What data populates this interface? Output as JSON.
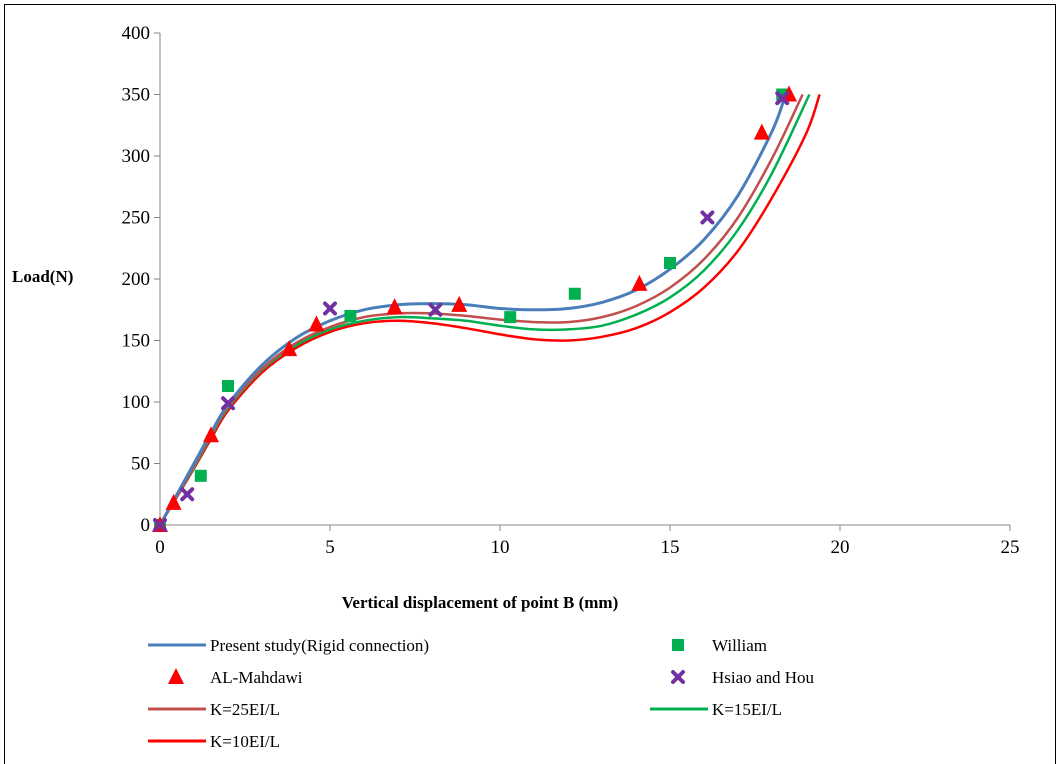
{
  "chart_data": {
    "type": "scatter",
    "title": "",
    "xlabel": "Vertical displacement of point B (mm)",
    "ylabel": "Load(N)",
    "xlim": [
      0,
      25
    ],
    "ylim": [
      0,
      400
    ],
    "x_ticks": [
      "0",
      "5",
      "10",
      "15",
      "20",
      "25"
    ],
    "y_ticks": [
      "0",
      "50",
      "100",
      "150",
      "200",
      "250",
      "300",
      "350",
      "400"
    ],
    "grid": false,
    "legend_position": "bottom",
    "series": [
      {
        "name": "Present study(Rigid connection)",
        "kind": "line",
        "color": "#4a7ebb",
        "points": [
          [
            0,
            0
          ],
          [
            0.5,
            25
          ],
          [
            1,
            50
          ],
          [
            1.5,
            75
          ],
          [
            2,
            98
          ],
          [
            3,
            130
          ],
          [
            4,
            152
          ],
          [
            5,
            166
          ],
          [
            6,
            175
          ],
          [
            7,
            179
          ],
          [
            8,
            180
          ],
          [
            9,
            179
          ],
          [
            10,
            176
          ],
          [
            11,
            175
          ],
          [
            12,
            176
          ],
          [
            13,
            181
          ],
          [
            14,
            191
          ],
          [
            15,
            208
          ],
          [
            16,
            232
          ],
          [
            17,
            268
          ],
          [
            18,
            320
          ],
          [
            18.4,
            350
          ]
        ]
      },
      {
        "name": "William",
        "kind": "marker",
        "marker": "square",
        "color": "#00b050",
        "points": [
          [
            0,
            0
          ],
          [
            1.2,
            40
          ],
          [
            2,
            113
          ],
          [
            5.6,
            170
          ],
          [
            10.3,
            169
          ],
          [
            12.2,
            188
          ],
          [
            15,
            213
          ],
          [
            18.3,
            350
          ]
        ]
      },
      {
        "name": "AL-Mahdawi",
        "kind": "marker",
        "marker": "triangle",
        "color": "#ff0000",
        "points": [
          [
            0,
            0
          ],
          [
            0.4,
            18
          ],
          [
            1.5,
            73
          ],
          [
            3.8,
            143
          ],
          [
            4.6,
            163
          ],
          [
            6.9,
            177
          ],
          [
            8.8,
            179
          ],
          [
            14.1,
            196
          ],
          [
            17.7,
            319
          ],
          [
            18.5,
            350
          ]
        ]
      },
      {
        "name": "Hsiao and Hou",
        "kind": "marker",
        "marker": "x",
        "color": "#7030a0",
        "points": [
          [
            0,
            0
          ],
          [
            0.8,
            25
          ],
          [
            2,
            99
          ],
          [
            5,
            176
          ],
          [
            8.1,
            175
          ],
          [
            16.1,
            250
          ],
          [
            18.3,
            347
          ]
        ]
      },
      {
        "name": "K=25EI/L",
        "kind": "line",
        "color": "#c0504d",
        "points": [
          [
            0,
            0
          ],
          [
            0.5,
            24
          ],
          [
            1,
            48
          ],
          [
            1.5,
            73
          ],
          [
            2,
            96
          ],
          [
            3,
            127
          ],
          [
            4,
            148
          ],
          [
            5,
            161
          ],
          [
            6,
            169
          ],
          [
            7,
            172
          ],
          [
            8,
            172
          ],
          [
            9,
            170
          ],
          [
            10,
            167
          ],
          [
            11,
            165
          ],
          [
            12,
            165
          ],
          [
            13,
            169
          ],
          [
            14,
            178
          ],
          [
            15,
            193
          ],
          [
            16,
            216
          ],
          [
            17,
            250
          ],
          [
            18,
            298
          ],
          [
            18.9,
            350
          ]
        ]
      },
      {
        "name": "K=15EI/L",
        "kind": "line",
        "color": "#00b050",
        "points": [
          [
            0,
            0
          ],
          [
            0.5,
            24
          ],
          [
            1,
            47
          ],
          [
            1.5,
            72
          ],
          [
            2,
            95
          ],
          [
            3,
            126
          ],
          [
            4,
            146
          ],
          [
            5,
            159
          ],
          [
            6,
            166
          ],
          [
            7,
            169
          ],
          [
            8,
            168
          ],
          [
            9,
            166
          ],
          [
            10,
            162
          ],
          [
            11,
            159
          ],
          [
            12,
            159
          ],
          [
            13,
            162
          ],
          [
            14,
            171
          ],
          [
            15,
            185
          ],
          [
            16,
            207
          ],
          [
            17,
            240
          ],
          [
            18,
            286
          ],
          [
            19.1,
            350
          ]
        ]
      },
      {
        "name": "K=10EI/L",
        "kind": "line",
        "color": "#ff0000",
        "points": [
          [
            0,
            0
          ],
          [
            0.5,
            23
          ],
          [
            1,
            46
          ],
          [
            1.5,
            70
          ],
          [
            2,
            93
          ],
          [
            3,
            124
          ],
          [
            4,
            144
          ],
          [
            5,
            157
          ],
          [
            6,
            164
          ],
          [
            7,
            166
          ],
          [
            8,
            164
          ],
          [
            9,
            160
          ],
          [
            10,
            155
          ],
          [
            11,
            151
          ],
          [
            12,
            150
          ],
          [
            13,
            153
          ],
          [
            14,
            160
          ],
          [
            15,
            173
          ],
          [
            16,
            193
          ],
          [
            17,
            223
          ],
          [
            18,
            266
          ],
          [
            19,
            318
          ],
          [
            19.4,
            350
          ]
        ]
      }
    ]
  },
  "legend_layout": [
    {
      "series": 0,
      "row": 0,
      "col": 0
    },
    {
      "series": 1,
      "row": 0,
      "col": 1
    },
    {
      "series": 2,
      "row": 1,
      "col": 0
    },
    {
      "series": 3,
      "row": 1,
      "col": 1
    },
    {
      "series": 4,
      "row": 2,
      "col": 0
    },
    {
      "series": 5,
      "row": 2,
      "col": 1
    },
    {
      "series": 6,
      "row": 3,
      "col": 0
    }
  ]
}
